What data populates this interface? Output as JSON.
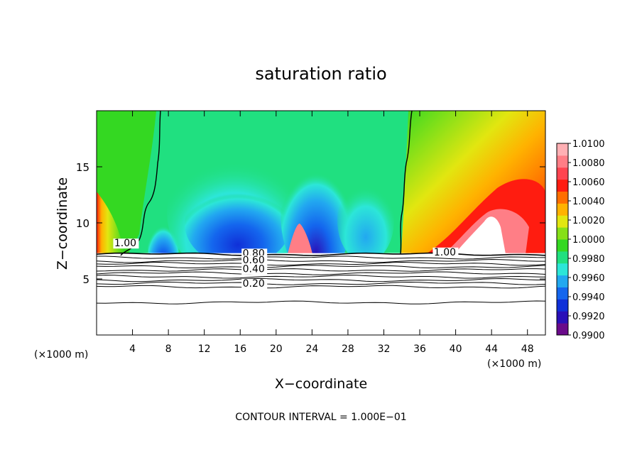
{
  "chart_data": {
    "type": "heatmap",
    "title": "saturation ratio",
    "xlabel": "X−coordinate",
    "ylabel": "Z−coordinate",
    "x_unit_label": "(×1000 m)",
    "footer": "CONTOUR INTERVAL = 1.000E−01",
    "xlim": [
      0,
      50
    ],
    "ylim": [
      0,
      20
    ],
    "x_ticks": [
      4,
      8,
      12,
      16,
      20,
      24,
      28,
      32,
      36,
      40,
      44,
      48
    ],
    "y_ticks": [
      5,
      10,
      15
    ],
    "x_tick_labels": [
      "4",
      "8",
      "12",
      "16",
      "20",
      "24",
      "28",
      "32",
      "36",
      "40",
      "44",
      "48"
    ],
    "y_tick_labels": [
      "5",
      "10",
      "15"
    ],
    "colorbar": {
      "min": 0.99,
      "max": 1.01,
      "labels": [
        "1.0100",
        "1.0080",
        "1.0060",
        "1.0040",
        "1.0020",
        "1.0000",
        "0.9980",
        "0.9960",
        "0.9940",
        "0.9920",
        "0.9900"
      ],
      "colors": [
        "#6a0a8a",
        "#2a10b8",
        "#1030d8",
        "#1466ee",
        "#22a8f0",
        "#2ce6d8",
        "#20e080",
        "#34d822",
        "#86e018",
        "#e2e610",
        "#ffb200",
        "#ff6e00",
        "#ff1c10",
        "#ff4450",
        "#ff7e86",
        "#ffb0b4"
      ]
    },
    "contour_labels": [
      {
        "text": "1.00",
        "x": 3.2,
        "y": 7.9
      },
      {
        "text": "1.00",
        "x": 38.8,
        "y": 7.1
      },
      {
        "text": "0.80",
        "x": 17.5,
        "y": 7.0
      },
      {
        "text": "0.60",
        "x": 17.5,
        "y": 6.4
      },
      {
        "text": "0.40",
        "x": 17.5,
        "y": 5.6
      },
      {
        "text": "0.20",
        "x": 17.5,
        "y": 4.3
      }
    ],
    "cloud_base_z": 7.3
  }
}
